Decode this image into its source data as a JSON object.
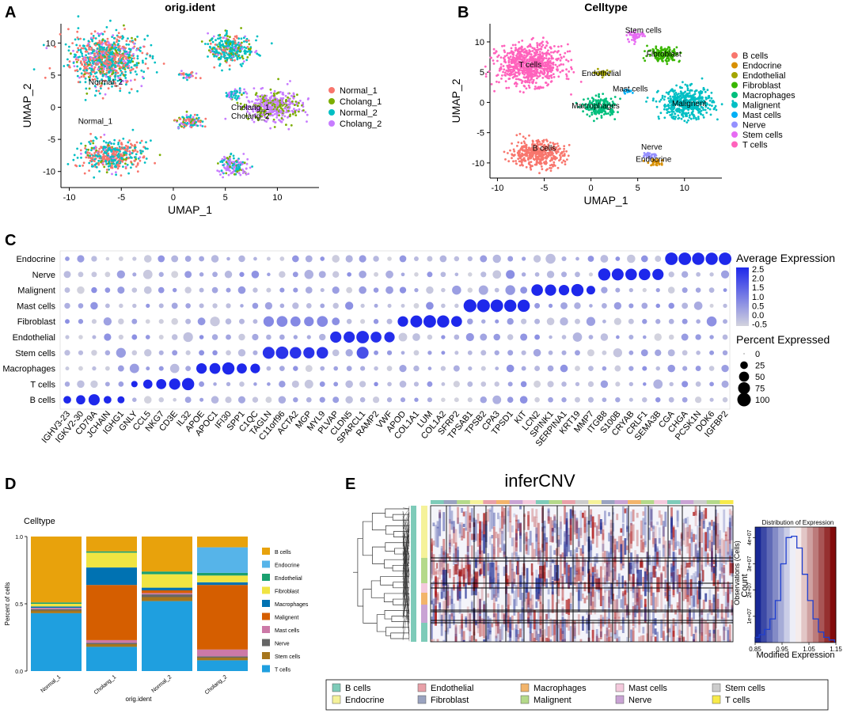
{
  "figure": {
    "panels": [
      {
        "letter": "A"
      },
      {
        "letter": "B"
      },
      {
        "letter": "C"
      },
      {
        "letter": "D"
      },
      {
        "letter": "E"
      }
    ]
  },
  "chart_data": [
    {
      "id": "umap-orig-ident",
      "type": "scatter",
      "title": "orig.ident",
      "xlabel": "UMAP_1",
      "ylabel": "UMAP_2",
      "xlim": [
        -10.8,
        14
      ],
      "ylim": [
        -12.5,
        13
      ],
      "x_ticks": [
        -10,
        -5,
        0,
        5,
        10
      ],
      "y_ticks": [
        10,
        5,
        0,
        -5,
        -10
      ],
      "colors": {
        "Normal_1": "#f8766d",
        "Cholang_1": "#7cae00",
        "Normal_2": "#00bfc4",
        "Cholang_2": "#c77cff"
      },
      "legend": [
        "Normal_1",
        "Cholang_1",
        "Normal_2",
        "Cholang_2"
      ],
      "cluster_labels": [
        {
          "text": "Normal_2",
          "x": -6.5,
          "y": 3.5
        },
        {
          "text": "Normal_1",
          "x": -7.5,
          "y": -2.6
        },
        {
          "text": "Cholang_1",
          "x": 7.4,
          "y": -0.4
        },
        {
          "text": "Cholang_2",
          "x": 7.4,
          "y": -1.8
        }
      ],
      "clusters": [
        {
          "cx": -6.5,
          "cy": 7.5,
          "rx": 3.8,
          "ry": 4.2,
          "mix": {
            "Normal_1": 0.35,
            "Normal_2": 0.45,
            "Cholang_1": 0.1,
            "Cholang_2": 0.1
          }
        },
        {
          "cx": -5.8,
          "cy": -7.5,
          "rx": 3.2,
          "ry": 2.6,
          "mix": {
            "Normal_1": 0.45,
            "Normal_2": 0.45,
            "Cholang_1": 0.05,
            "Cholang_2": 0.05
          }
        },
        {
          "cx": 5.5,
          "cy": 9.0,
          "rx": 2.3,
          "ry": 2.6,
          "mix": {
            "Normal_2": 0.6,
            "Cholang_1": 0.2,
            "Normal_1": 0.1,
            "Cholang_2": 0.1
          }
        },
        {
          "cx": 9.6,
          "cy": 0.2,
          "rx": 3.0,
          "ry": 2.6,
          "mix": {
            "Cholang_2": 0.65,
            "Cholang_1": 0.35
          }
        },
        {
          "cx": 1.6,
          "cy": -2.2,
          "rx": 1.4,
          "ry": 1.3,
          "mix": {
            "Normal_1": 0.3,
            "Normal_2": 0.3,
            "Cholang_1": 0.2,
            "Cholang_2": 0.2
          }
        },
        {
          "cx": 5.8,
          "cy": -9.2,
          "rx": 1.7,
          "ry": 1.6,
          "mix": {
            "Cholang_2": 0.6,
            "Cholang_1": 0.1,
            "Normal_2": 0.3
          }
        },
        {
          "cx": 5.8,
          "cy": 2.1,
          "rx": 1.0,
          "ry": 0.8,
          "mix": {
            "Cholang_2": 0.5,
            "Normal_2": 0.5
          }
        },
        {
          "cx": 1.5,
          "cy": 5.0,
          "rx": 1.1,
          "ry": 0.6,
          "mix": {
            "Normal_1": 0.4,
            "Normal_2": 0.3,
            "Cholang_2": 0.3
          }
        }
      ]
    },
    {
      "id": "umap-celltype",
      "type": "scatter",
      "title": "Celltype",
      "xlabel": "UMAP_1",
      "ylabel": "UMAP_2",
      "xlim": [
        -10.8,
        14
      ],
      "ylim": [
        -12.5,
        13
      ],
      "x_ticks": [
        -10,
        -5,
        0,
        5,
        10
      ],
      "y_ticks": [
        10,
        5,
        0,
        -5,
        -10
      ],
      "legend": [
        "B cells",
        "Endocrine",
        "Endothelial",
        "Fibroblast",
        "Macrophages",
        "Malignent",
        "Mast cells",
        "Nerve",
        "Stem cells",
        "T cells"
      ],
      "colors": {
        "B cells": "#f8766d",
        "Endocrine": "#d89000",
        "Endothelial": "#a3a500",
        "Fibroblast": "#39b600",
        "Macrophages": "#00bf7d",
        "Malignent": "#00bfc4",
        "Mast cells": "#00b0f6",
        "Nerve": "#9590ff",
        "Stem cells": "#e76bf3",
        "T cells": "#ff62bc"
      },
      "cluster_labels": [
        {
          "text": "T cells",
          "x": -6.5,
          "y": 5.8
        },
        {
          "text": "Stem cells",
          "x": 5.6,
          "y": 11.5
        },
        {
          "text": "Fibroblast",
          "x": 7.8,
          "y": 7.6
        },
        {
          "text": "Endothelial",
          "x": 1.1,
          "y": 4.4
        },
        {
          "text": "Mast cells",
          "x": 4.2,
          "y": 1.8
        },
        {
          "text": "Macrophages",
          "x": 0.5,
          "y": -1.0
        },
        {
          "text": "Malignent",
          "x": 10.5,
          "y": -0.6
        },
        {
          "text": "B cells",
          "x": -5.0,
          "y": -8.0
        },
        {
          "text": "Nerve",
          "x": 6.5,
          "y": -7.8
        },
        {
          "text": "Endocrine",
          "x": 6.7,
          "y": -9.8
        }
      ],
      "clusters": [
        {
          "cx": -6.5,
          "cy": 6.2,
          "rx": 3.8,
          "ry": 3.6,
          "type": "T cells"
        },
        {
          "cx": -5.8,
          "cy": -8.5,
          "rx": 3.2,
          "ry": 2.4,
          "type": "B cells"
        },
        {
          "cx": 4.8,
          "cy": 11.0,
          "rx": 1.0,
          "ry": 0.9,
          "type": "Stem cells"
        },
        {
          "cx": 7.8,
          "cy": 8.0,
          "rx": 1.9,
          "ry": 1.4,
          "type": "Fibroblast"
        },
        {
          "cx": 1.2,
          "cy": 4.9,
          "rx": 0.9,
          "ry": 0.5,
          "type": "Endothelial"
        },
        {
          "cx": 4.0,
          "cy": 1.8,
          "rx": 0.6,
          "ry": 0.45,
          "type": "Mast cells"
        },
        {
          "cx": 1.0,
          "cy": -0.8,
          "rx": 1.9,
          "ry": 1.8,
          "type": "Macrophages"
        },
        {
          "cx": 10.2,
          "cy": -0.2,
          "rx": 3.1,
          "ry": 2.8,
          "type": "Malignent"
        },
        {
          "cx": 6.3,
          "cy": -8.7,
          "rx": 0.8,
          "ry": 0.6,
          "type": "Nerve"
        },
        {
          "cx": 7.0,
          "cy": -10.0,
          "rx": 1.0,
          "ry": 0.6,
          "type": "Endocrine"
        }
      ]
    },
    {
      "id": "dotplot",
      "type": "scatter",
      "subtype": "dotplot",
      "rows": [
        "Endocrine",
        "Nerve",
        "Malignent",
        "Mast cells",
        "Fibroblast",
        "Endothelial",
        "Stem cells",
        "Macrophages",
        "T cells",
        "B cells"
      ],
      "genes": [
        "IGHV3-23",
        "IGKV2-30",
        "CD79A",
        "JCHAIN",
        "IGHG1",
        "GNLY",
        "CCL5",
        "NKG7",
        "CD3E",
        "IL32",
        "APOE",
        "APOC1",
        "IFI30",
        "SPP1",
        "C1QC",
        "TAGLN",
        "C11orf96",
        "ACTA2",
        "MGP",
        "MYL9",
        "PLVAP",
        "CLDN5",
        "SPARCL1",
        "RAMP2",
        "VWF",
        "APOD",
        "COL1A1",
        "LUM",
        "COL1A2",
        "SFRP2",
        "TPSAB1",
        "TPSB2",
        "CPA3",
        "TPSD1",
        "KIT",
        "LCN2",
        "SPINK1",
        "SERPINA1",
        "KRT19",
        "MMP7",
        "ITGB8",
        "S100B",
        "CRYAB",
        "CRLF1",
        "SEMA3B",
        "CGA",
        "CHGA",
        "PCSK1N",
        "DOK6",
        "IGFBP2"
      ],
      "marker_blocks": [
        {
          "row": "B cells",
          "genes": [
            0,
            1,
            2,
            3,
            4
          ],
          "pct": [
            25,
            40,
            65,
            25,
            20
          ],
          "expr": 2.5
        },
        {
          "row": "T cells",
          "genes": [
            5,
            6,
            7,
            8,
            9
          ],
          "pct": [
            15,
            40,
            50,
            65,
            80
          ],
          "expr": 2.5
        },
        {
          "row": "Macrophages",
          "genes": [
            10,
            11,
            12,
            13,
            14
          ],
          "pct": [
            55,
            60,
            80,
            50,
            45
          ],
          "expr": 2.5
        },
        {
          "row": "Stem cells",
          "genes": [
            15,
            16,
            17,
            18,
            19
          ],
          "pct": [
            75,
            85,
            70,
            65,
            70
          ],
          "expr": 2.3
        },
        {
          "row": "Stem cells",
          "genes": [
            22
          ],
          "pct": [
            75
          ],
          "expr": 1.8
        },
        {
          "row": "Fibroblast",
          "genes": [
            15,
            16,
            17,
            18,
            19
          ],
          "pct": [
            55,
            60,
            50,
            45,
            60
          ],
          "expr": 0.8
        },
        {
          "row": "Endothelial",
          "genes": [
            20,
            21,
            22,
            23,
            24
          ],
          "pct": [
            65,
            65,
            85,
            60,
            55
          ],
          "expr": 2.4
        },
        {
          "row": "Fibroblast",
          "genes": [
            25,
            26,
            27,
            28,
            29
          ],
          "pct": [
            55,
            75,
            85,
            80,
            60
          ],
          "expr": 2.5
        },
        {
          "row": "Mast cells",
          "genes": [
            30,
            31,
            32,
            33,
            34
          ],
          "pct": [
            90,
            90,
            85,
            80,
            80
          ],
          "expr": 2.5
        },
        {
          "row": "Malignent",
          "genes": [
            35,
            36,
            37,
            38,
            39
          ],
          "pct": [
            70,
            65,
            55,
            80,
            35
          ],
          "expr": 2.5
        },
        {
          "row": "Nerve",
          "genes": [
            40,
            41,
            42,
            43,
            44
          ],
          "pct": [
            80,
            75,
            70,
            70,
            65
          ],
          "expr": 2.5
        },
        {
          "row": "Endocrine",
          "genes": [
            45,
            46,
            47,
            48,
            49
          ],
          "pct": [
            85,
            85,
            80,
            80,
            85
          ],
          "expr": 2.5
        }
      ],
      "legend_expression_title": "Average Expression",
      "expression_ticks": [
        2.5,
        2.0,
        1.5,
        1.0,
        0.5,
        0.0,
        -0.5
      ],
      "legend_percent_title": "Percent Expressed",
      "percent_ticks": [
        0,
        25,
        50,
        75,
        100
      ]
    },
    {
      "id": "stacked-bars",
      "type": "bar",
      "subtype": "stacked",
      "legend_title": "Celltype",
      "ylabel": "Percent of cells",
      "xlabel": "orig.ident",
      "ylim": [
        0,
        1
      ],
      "y_ticks": [
        0.0,
        0.5,
        1.0
      ],
      "categories": [
        "Normal_1",
        "Cholang_1",
        "Normal_2",
        "Cholang_2"
      ],
      "stack_order_bottom_to_top": [
        "T cells",
        "Stem cells",
        "Nerve",
        "Mast cells",
        "Malignent",
        "Macrophages",
        "Fibroblast",
        "Endothelial",
        "Endocrine",
        "B cells"
      ],
      "legend": [
        "B cells",
        "Endocrine",
        "Endothelial",
        "Fibroblast",
        "Macrophages",
        "Malignent",
        "Mast cells",
        "Nerve",
        "Stem cells",
        "T cells"
      ],
      "colors": {
        "B cells": "#e8a20c",
        "Endocrine": "#56b4e9",
        "Endothelial": "#1aa06f",
        "Fibroblast": "#f0e442",
        "Macrophages": "#0072b2",
        "Malignent": "#d55e00",
        "Mast cells": "#cc79a7",
        "Nerve": "#666666",
        "Stem cells": "#a6761d",
        "T cells": "#1f9fdf"
      },
      "series": [
        {
          "name": "T cells",
          "values": [
            0.43,
            0.18,
            0.52,
            0.08
          ]
        },
        {
          "name": "Stem cells",
          "values": [
            0.02,
            0.02,
            0.03,
            0.02
          ]
        },
        {
          "name": "Nerve",
          "values": [
            0.01,
            0.01,
            0.02,
            0.01
          ]
        },
        {
          "name": "Mast cells",
          "values": [
            0.01,
            0.02,
            0.01,
            0.05
          ]
        },
        {
          "name": "Malignent",
          "values": [
            0.0,
            0.41,
            0.02,
            0.48
          ]
        },
        {
          "name": "Macrophages",
          "values": [
            0.01,
            0.13,
            0.02,
            0.02
          ]
        },
        {
          "name": "Fibroblast",
          "values": [
            0.02,
            0.11,
            0.1,
            0.05
          ]
        },
        {
          "name": "Endothelial",
          "values": [
            0.01,
            0.01,
            0.02,
            0.02
          ]
        },
        {
          "name": "Endocrine",
          "values": [
            0.0,
            0.0,
            0.0,
            0.19
          ]
        },
        {
          "name": "B cells",
          "values": [
            0.49,
            0.11,
            0.26,
            0.08
          ]
        }
      ]
    },
    {
      "id": "infercnv",
      "type": "heatmap",
      "title": "inferCNV",
      "ylabel": "Observations (Cells)",
      "row_groups": [
        "Endocrine",
        "Malignent",
        "Mast cells",
        "Macrophages",
        "Nerve",
        "B cells"
      ],
      "legend": [
        "B cells",
        "Endocrine",
        "Endothelial",
        "Fibroblast",
        "Macrophages",
        "Malignent",
        "Mast cells",
        "Nerve",
        "Stem cells",
        "T cells"
      ],
      "colors": {
        "B cells": "#7ecbb9",
        "Endocrine": "#f5f29a",
        "Endothelial": "#e8a0a8",
        "Fibroblast": "#9aa3c0",
        "Macrophages": "#f2b46b",
        "Malignent": "#b4d98a",
        "Mast cells": "#f4c9dc",
        "Nerve": "#c9a3d4",
        "Stem cells": "#cccccc",
        "T cells": "#f7ea4a"
      },
      "histogram": {
        "title": "Distribution of Expression",
        "xlabel": "Modified Expression",
        "ylabel": "Count",
        "x_ticks": [
          0.85,
          0.95,
          1.05,
          1.15
        ],
        "y_ticks": [
          "1e+07",
          "2e+07",
          "3e+07",
          "4e+07"
        ],
        "x": [
          0.855,
          0.875,
          0.895,
          0.915,
          0.935,
          0.955,
          0.975,
          0.995,
          1.015,
          1.035,
          1.055,
          1.075,
          1.095,
          1.115,
          1.135
        ],
        "counts": [
          0.2,
          0.3,
          0.5,
          0.9,
          1.6,
          3.0,
          4.0,
          4.05,
          3.6,
          2.6,
          1.6,
          0.9,
          0.4,
          0.2,
          0.1
        ]
      }
    }
  ]
}
